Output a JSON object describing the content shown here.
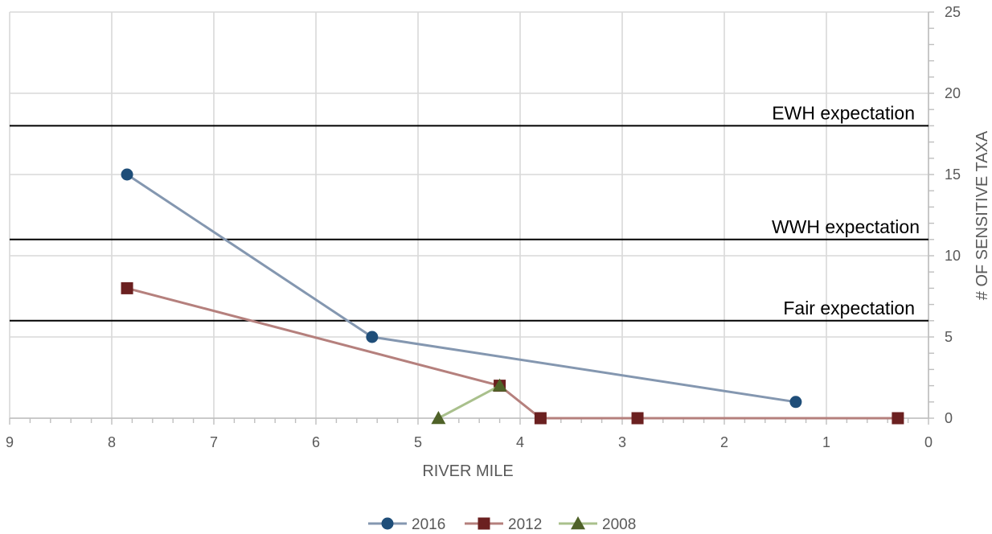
{
  "chart_data": {
    "type": "line",
    "title": "",
    "xlabel": "RIVER MILE",
    "ylabel": "# OF SENSITIVE TAXA",
    "x_reversed": true,
    "y_axis_side": "right",
    "xlim": [
      0,
      9
    ],
    "ylim": [
      0,
      25
    ],
    "x_major_ticks": [
      9,
      8,
      7,
      6,
      5,
      4,
      3,
      2,
      1,
      0
    ],
    "x_minor_step": 0.2,
    "y_major_ticks": [
      0,
      5,
      10,
      15,
      20,
      25
    ],
    "y_minor_step": 1,
    "grid": true,
    "legend_position": "bottom",
    "reference_lines": [
      {
        "label": "EWH expectation",
        "y": 18
      },
      {
        "label": "WWH expectation",
        "y": 11
      },
      {
        "label": "Fair expectation",
        "y": 6
      }
    ],
    "series": [
      {
        "name": "2016",
        "color": "#8497b0",
        "marker_color": "#1f4e79",
        "marker": "circle",
        "points": [
          {
            "x": 7.85,
            "y": 15
          },
          {
            "x": 5.45,
            "y": 5
          },
          {
            "x": 1.3,
            "y": 1
          }
        ]
      },
      {
        "name": "2012",
        "color": "#b5807d",
        "marker_color": "#6b2020",
        "marker": "square",
        "points": [
          {
            "x": 7.85,
            "y": 8
          },
          {
            "x": 4.2,
            "y": 2
          },
          {
            "x": 3.8,
            "y": 0
          },
          {
            "x": 2.85,
            "y": 0
          },
          {
            "x": 0.3,
            "y": 0
          }
        ]
      },
      {
        "name": "2008",
        "color": "#a9c08c",
        "marker_color": "#4f6228",
        "marker": "triangle",
        "points": [
          {
            "x": 4.8,
            "y": 0
          },
          {
            "x": 4.2,
            "y": 2
          }
        ]
      }
    ]
  }
}
